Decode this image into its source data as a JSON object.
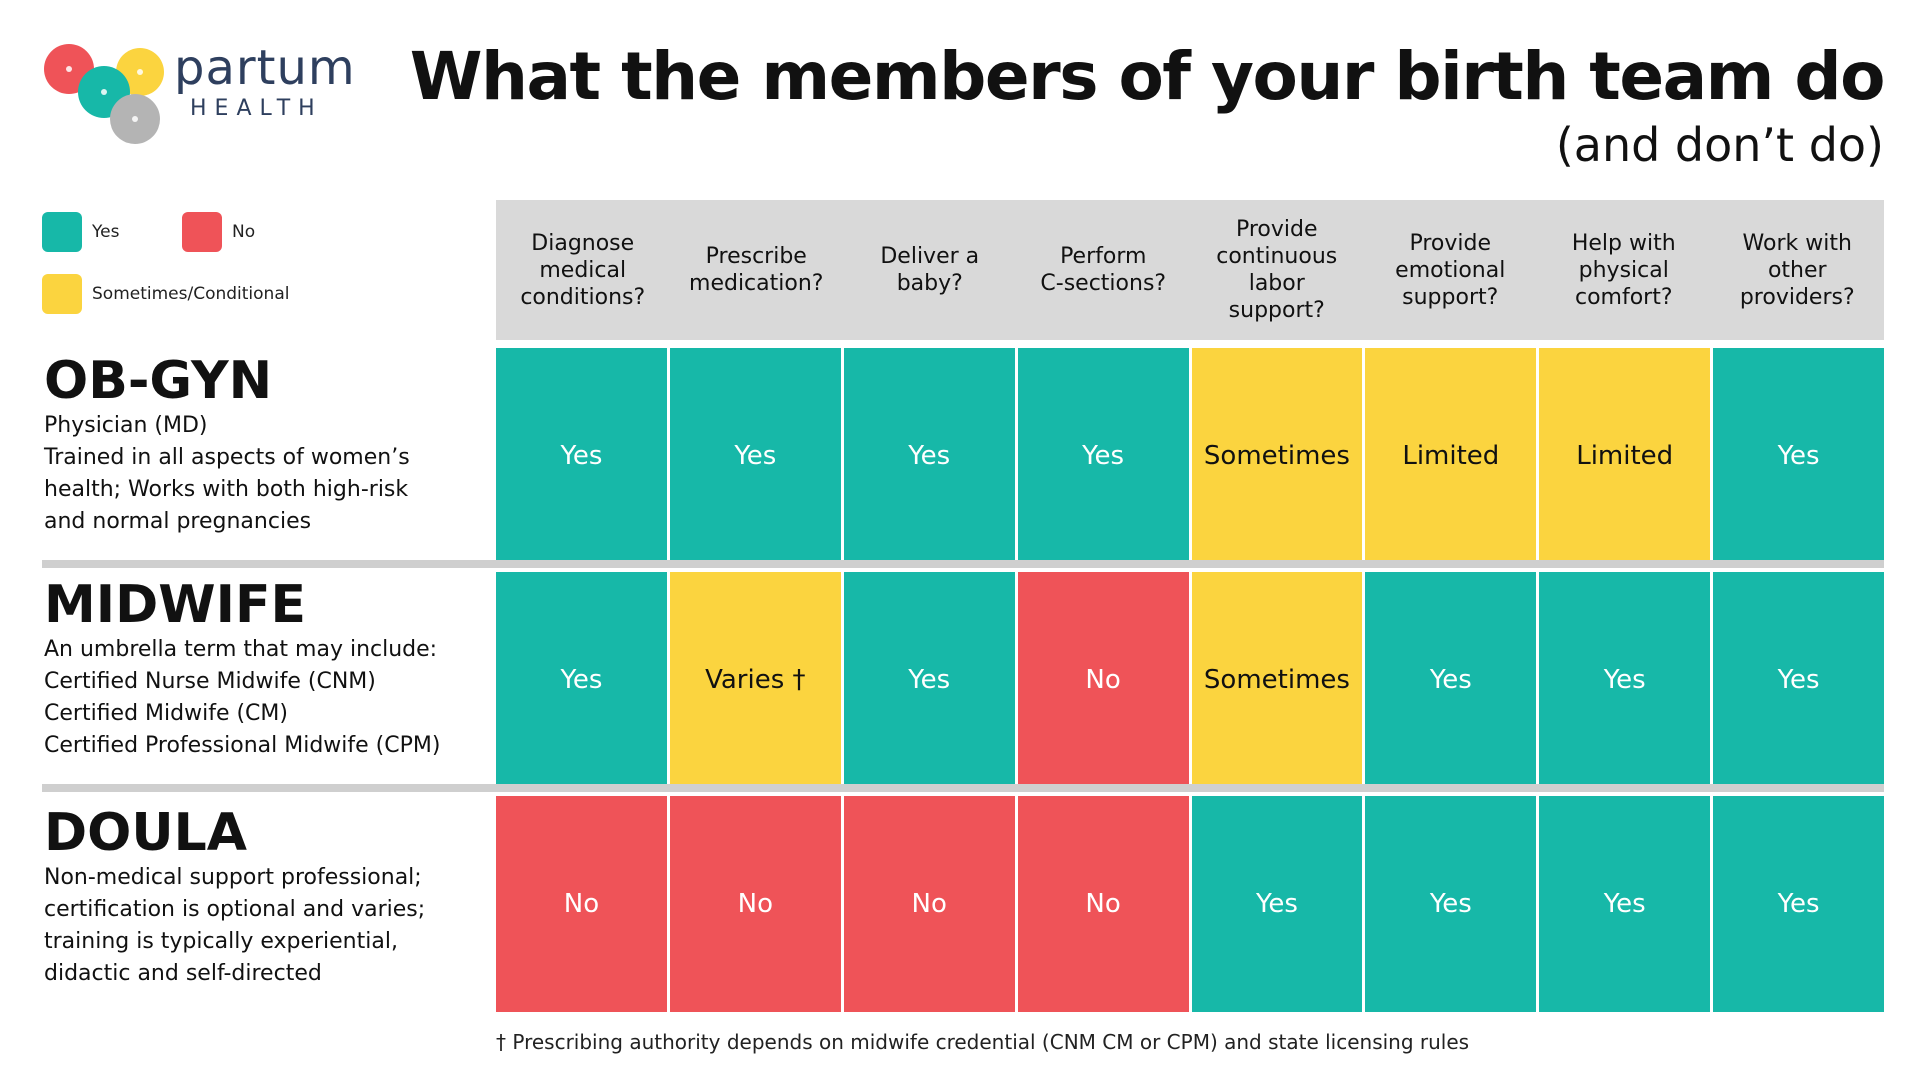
{
  "logo": {
    "word": "partum",
    "sub": "HEALTH"
  },
  "title": "What the members of your birth team do",
  "subtitle": "(and don’t do)",
  "colors": {
    "yes": "#17b8a8",
    "no": "#ef5358",
    "sometimes": "#fbd43f",
    "header_bg": "#d9d9d9",
    "logo_text": "#2e3f5e"
  },
  "legend": {
    "yes": "Yes",
    "no": "No",
    "sometimes": "Sometimes/Conditional"
  },
  "columns": [
    "Diagnose\nmedical\nconditions?",
    "Prescribe\nmedication?",
    "Deliver a\nbaby?",
    "Perform\nC-sections?",
    "Provide\ncontinuous\nlabor\nsupport?",
    "Provide\nemotional\nsupport?",
    "Help with\nphysical\ncomfort?",
    "Work with\nother\nproviders?"
  ],
  "rows": [
    {
      "name": "OB-GYN",
      "desc": [
        "Physician (MD)",
        "Trained in all aspects of women’s",
        "health; Works with both high-risk",
        "and normal pregnancies"
      ],
      "cells": [
        {
          "value": "Yes",
          "status": "yes"
        },
        {
          "value": "Yes",
          "status": "yes"
        },
        {
          "value": "Yes",
          "status": "yes"
        },
        {
          "value": "Yes",
          "status": "yes"
        },
        {
          "value": "Sometimes",
          "status": "sometimes"
        },
        {
          "value": "Limited",
          "status": "sometimes"
        },
        {
          "value": "Limited",
          "status": "sometimes"
        },
        {
          "value": "Yes",
          "status": "yes"
        }
      ]
    },
    {
      "name": "MIDWIFE",
      "desc": [
        "An umbrella term that may include:",
        "Certified Nurse Midwife (CNM)",
        "Certified Midwife (CM)",
        "Certified Professional Midwife (CPM)"
      ],
      "cells": [
        {
          "value": "Yes",
          "status": "yes"
        },
        {
          "value": "Varies †",
          "status": "sometimes"
        },
        {
          "value": "Yes",
          "status": "yes"
        },
        {
          "value": "No",
          "status": "no"
        },
        {
          "value": "Sometimes",
          "status": "sometimes"
        },
        {
          "value": "Yes",
          "status": "yes"
        },
        {
          "value": "Yes",
          "status": "yes"
        },
        {
          "value": "Yes",
          "status": "yes"
        }
      ]
    },
    {
      "name": "DOULA",
      "desc": [
        "Non-medical support professional;",
        "certification is optional and varies;",
        "training is typically experiential,",
        "didactic and self-directed"
      ],
      "cells": [
        {
          "value": "No",
          "status": "no"
        },
        {
          "value": "No",
          "status": "no"
        },
        {
          "value": "No",
          "status": "no"
        },
        {
          "value": "No",
          "status": "no"
        },
        {
          "value": "Yes",
          "status": "yes"
        },
        {
          "value": "Yes",
          "status": "yes"
        },
        {
          "value": "Yes",
          "status": "yes"
        },
        {
          "value": "Yes",
          "status": "yes"
        }
      ]
    }
  ],
  "footnote": "† Prescribing authority depends on midwife credential (CNM CM or CPM) and state licensing rules"
}
